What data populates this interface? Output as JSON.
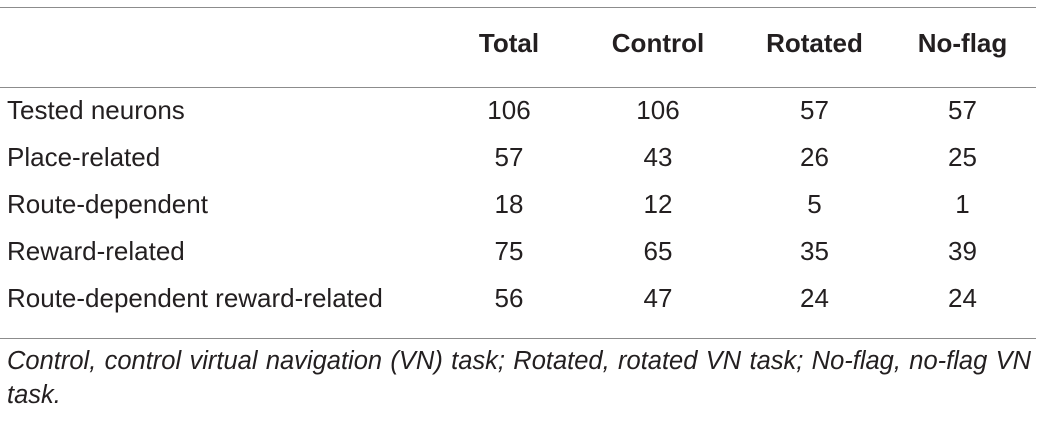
{
  "table": {
    "columns": [
      "",
      "Total",
      "Control",
      "Rotated",
      "No-flag"
    ],
    "rows": [
      {
        "label": "Tested neurons",
        "values": [
          "106",
          "106",
          "57",
          "57"
        ]
      },
      {
        "label": "Place-related",
        "values": [
          "57",
          "43",
          "26",
          "25"
        ]
      },
      {
        "label": "Route-dependent",
        "values": [
          "18",
          "12",
          "5",
          "1"
        ]
      },
      {
        "label": "Reward-related",
        "values": [
          "75",
          "65",
          "35",
          "39"
        ]
      },
      {
        "label": "Route-dependent reward-related",
        "values": [
          "56",
          "47",
          "24",
          "24"
        ]
      }
    ]
  },
  "footnote": "Control, control virtual navigation (VN) task; Rotated, rotated VN task; No-flag, no-flag VN task."
}
